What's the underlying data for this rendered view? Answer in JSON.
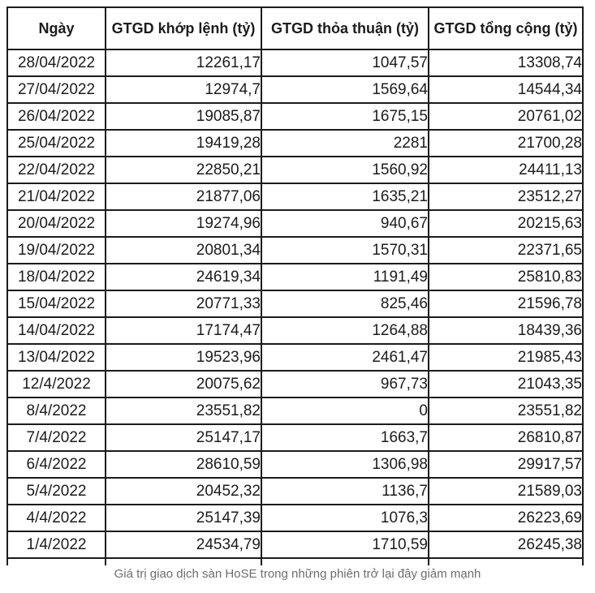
{
  "chart_data": {
    "type": "table",
    "columns": [
      "Ngày",
      "GTGD khớp lệnh (tỷ)",
      "GTGD thỏa thuận (tỷ)",
      "GTGD tổng cộng (tỷ)"
    ],
    "rows": [
      [
        "28/04/2022",
        "12261,17",
        "1047,57",
        "13308,74"
      ],
      [
        "27/04/2022",
        "12974,7",
        "1569,64",
        "14544,34"
      ],
      [
        "26/04/2022",
        "19085,87",
        "1675,15",
        "20761,02"
      ],
      [
        "25/04/2022",
        "19419,28",
        "2281",
        "21700,28"
      ],
      [
        "22/04/2022",
        "22850,21",
        "1560,92",
        "24411,13"
      ],
      [
        "21/04/2022",
        "21877,06",
        "1635,21",
        "23512,27"
      ],
      [
        "20/04/2022",
        "19274,96",
        "940,67",
        "20215,63"
      ],
      [
        "19/04/2022",
        "20801,34",
        "1570,31",
        "22371,65"
      ],
      [
        "18/04/2022",
        "24619,34",
        "1191,49",
        "25810,83"
      ],
      [
        "15/04/2022",
        "20771,33",
        "825,46",
        "21596,78"
      ],
      [
        "14/04/2022",
        "17174,47",
        "1264,88",
        "18439,36"
      ],
      [
        "13/04/2022",
        "19523,96",
        "2461,47",
        "21985,43"
      ],
      [
        "12/4/2022",
        "20075,62",
        "967,73",
        "21043,35"
      ],
      [
        "8/4/2022",
        "23551,82",
        "0",
        "23551,82"
      ],
      [
        "7/4/2022",
        "25147,17",
        "1663,7",
        "26810,87"
      ],
      [
        "6/4/2022",
        "28610,59",
        "1306,98",
        "29917,57"
      ],
      [
        "5/4/2022",
        "20452,32",
        "1136,7",
        "21589,03"
      ],
      [
        "4/4/2022",
        "25147,39",
        "1076,3",
        "26223,69"
      ],
      [
        "1/4/2022",
        "24534,79",
        "1710,59",
        "26245,38"
      ]
    ]
  },
  "caption": "Giá trị giao dịch sàn HoSE trong những phiên trở lại đây giảm mạnh",
  "colors": {
    "border": "#1b1b1b",
    "text": "#1c1c1c",
    "caption_text": "#6d6d6d",
    "background": "#ffffff"
  }
}
